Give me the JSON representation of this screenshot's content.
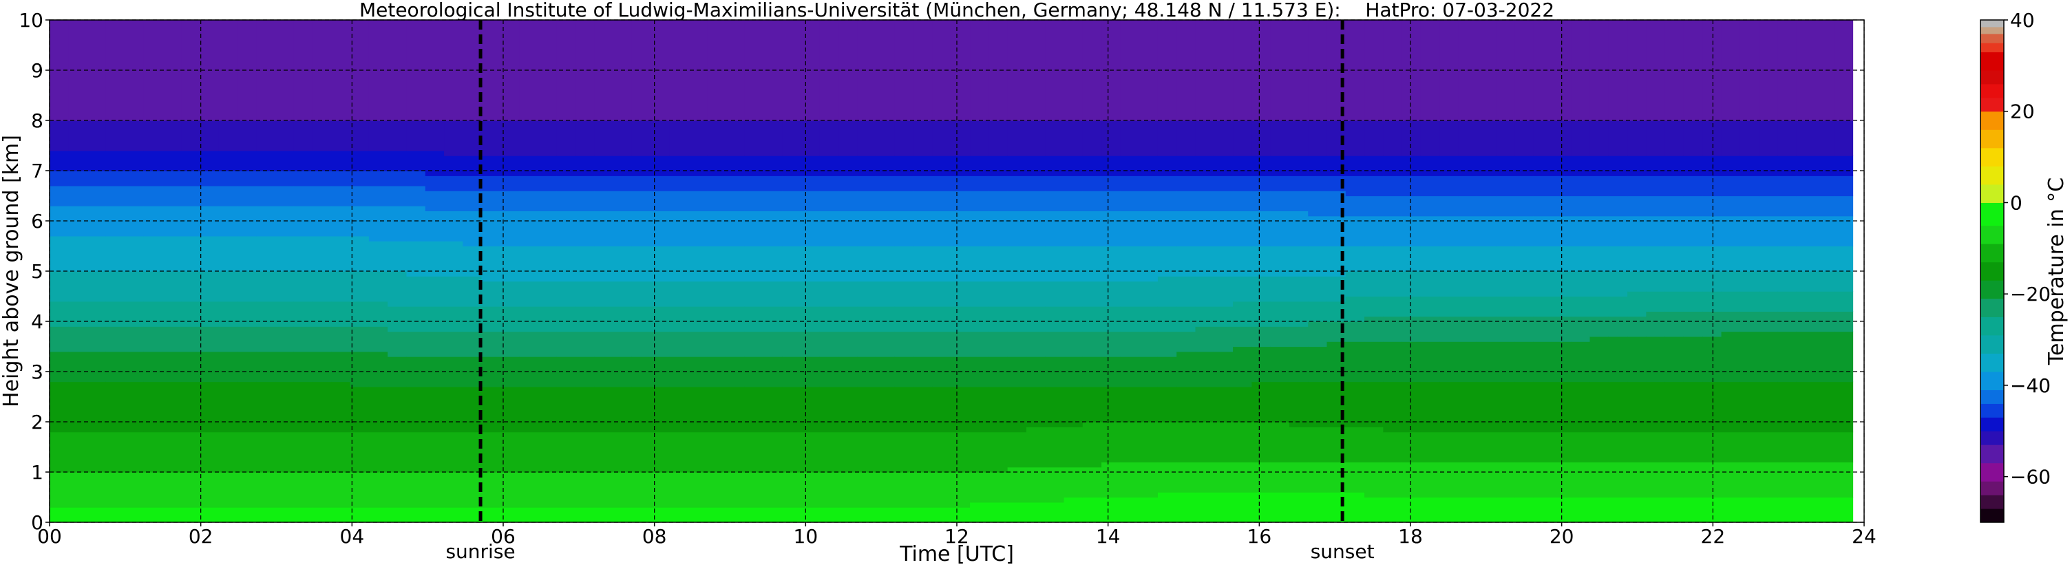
{
  "chart_data": {
    "type": "heatmap",
    "title": "Meteorological Institute of Ludwig-Maximilians-Universität (München, Germany; 48.148 N / 11.573 E):    HatPro: 07-03-2022",
    "xlabel": "Time [UTC]",
    "ylabel": "Height above ground [km]",
    "xlim": [
      0,
      24
    ],
    "ylim": [
      0,
      10
    ],
    "x_ticks": [
      "00",
      "02",
      "04",
      "06",
      "08",
      "10",
      "12",
      "14",
      "16",
      "18",
      "20",
      "22",
      "24"
    ],
    "y_ticks": [
      "0",
      "1",
      "2",
      "3",
      "4",
      "5",
      "6",
      "7",
      "8",
      "9",
      "10"
    ],
    "grid": true,
    "colorbar": {
      "label": "Temperature in $^\\circ$C",
      "range": [
        -70,
        40
      ],
      "ticks": [
        "40",
        "20",
        "0",
        "−20",
        "−40",
        "−60"
      ],
      "colors": [
        {
          "lo": -70,
          "hi": -67,
          "color": "#120010"
        },
        {
          "lo": -67,
          "hi": -64,
          "color": "#3d0a3d"
        },
        {
          "lo": -64,
          "hi": -61,
          "color": "#6a1270"
        },
        {
          "lo": -61,
          "hi": -57,
          "color": "#880d95"
        },
        {
          "lo": -57,
          "hi": -53,
          "color": "#5a19a8"
        },
        {
          "lo": -53,
          "hi": -50,
          "color": "#2a0fb6"
        },
        {
          "lo": -50,
          "hi": -47,
          "color": "#0a10cc"
        },
        {
          "lo": -47,
          "hi": -44,
          "color": "#0a40de"
        },
        {
          "lo": -44,
          "hi": -41,
          "color": "#0a70e2"
        },
        {
          "lo": -41,
          "hi": -37,
          "color": "#0a94de"
        },
        {
          "lo": -37,
          "hi": -33,
          "color": "#0aa8c8"
        },
        {
          "lo": -33,
          "hi": -29,
          "color": "#0aa8a8"
        },
        {
          "lo": -29,
          "hi": -25,
          "color": "#0aa890"
        },
        {
          "lo": -25,
          "hi": -21,
          "color": "#10a06a"
        },
        {
          "lo": -21,
          "hi": -17,
          "color": "#0a9a2c"
        },
        {
          "lo": -17,
          "hi": -13,
          "color": "#0a9a0a"
        },
        {
          "lo": -13,
          "hi": -9,
          "color": "#10b010"
        },
        {
          "lo": -9,
          "hi": -5,
          "color": "#18d418"
        },
        {
          "lo": -5,
          "hi": 0,
          "color": "#10f010"
        },
        {
          "lo": 0,
          "hi": 4,
          "color": "#c8f020"
        },
        {
          "lo": 4,
          "hi": 8,
          "color": "#e8e808"
        },
        {
          "lo": 8,
          "hi": 12,
          "color": "#f8d800"
        },
        {
          "lo": 12,
          "hi": 16,
          "color": "#f8b400"
        },
        {
          "lo": 16,
          "hi": 20,
          "color": "#f89400"
        },
        {
          "lo": 20,
          "hi": 23,
          "color": "#e81818"
        },
        {
          "lo": 23,
          "hi": 26,
          "color": "#e80e0e"
        },
        {
          "lo": 26,
          "hi": 29,
          "color": "#d40808"
        },
        {
          "lo": 29,
          "hi": 33,
          "color": "#d80000"
        },
        {
          "lo": 33,
          "hi": 35,
          "color": "#e83820"
        },
        {
          "lo": 35,
          "hi": 37,
          "color": "#d86040"
        },
        {
          "lo": 37,
          "hi": 38.5,
          "color": "#c8a080"
        },
        {
          "lo": 38.5,
          "hi": 40,
          "color": "#b8b8b8"
        }
      ]
    },
    "heights_km": [
      0,
      0.5,
      1,
      1.5,
      2,
      2.5,
      3,
      3.5,
      4,
      4.5,
      5,
      5.5,
      6,
      6.5,
      7,
      7.5,
      8,
      8.5,
      9,
      9.5,
      10
    ],
    "times_utc": [
      0,
      2,
      4,
      6,
      8,
      10,
      12,
      14,
      16,
      18,
      20,
      22,
      24
    ],
    "temperature_profiles": [
      {
        "time": 0,
        "values": [
          -3,
          -6,
          -9,
          -12,
          -14,
          -16,
          -18,
          -22,
          -26,
          -30,
          -33,
          -36,
          -39,
          -42,
          -47,
          -51,
          -53,
          -55,
          -56,
          -56,
          -56
        ]
      },
      {
        "time": 2,
        "values": [
          -3,
          -6,
          -9,
          -12,
          -14,
          -16,
          -18,
          -22,
          -26,
          -30,
          -33,
          -36,
          -39,
          -42,
          -47,
          -51,
          -53,
          -55,
          -56,
          -56,
          -56
        ]
      },
      {
        "time": 4,
        "values": [
          -3,
          -6,
          -9,
          -12,
          -14,
          -16,
          -18,
          -22,
          -26,
          -30,
          -33,
          -36,
          -39,
          -42,
          -47,
          -51,
          -53,
          -55,
          -56,
          -56,
          -56
        ]
      },
      {
        "time": 6,
        "values": [
          -3,
          -6,
          -9,
          -12,
          -14,
          -16,
          -19,
          -23,
          -27,
          -31,
          -34,
          -37,
          -40,
          -43,
          -48,
          -51,
          -53,
          -55,
          -56,
          -56,
          -56
        ]
      },
      {
        "time": 8,
        "values": [
          -3,
          -6,
          -9,
          -12,
          -14,
          -16,
          -19,
          -23,
          -27,
          -31,
          -34,
          -37,
          -40,
          -43,
          -48,
          -51,
          -53,
          -55,
          -56,
          -56,
          -56
        ]
      },
      {
        "time": 10,
        "values": [
          -3,
          -6,
          -9,
          -12,
          -14,
          -16,
          -19,
          -23,
          -27,
          -31,
          -34,
          -37,
          -40,
          -43,
          -48,
          -51,
          -53,
          -55,
          -56,
          -56,
          -56
        ]
      },
      {
        "time": 12,
        "values": [
          -3,
          -6,
          -9,
          -12,
          -14,
          -16,
          -19,
          -23,
          -27,
          -31,
          -34,
          -37,
          -40,
          -43,
          -48,
          -51,
          -53,
          -55,
          -56,
          -56,
          -56
        ]
      },
      {
        "time": 14,
        "values": [
          -2,
          -5,
          -8,
          -11,
          -13,
          -16,
          -19,
          -23,
          -27,
          -31,
          -34,
          -37,
          -40,
          -43,
          -48,
          -51,
          -53,
          -55,
          -56,
          -56,
          -56
        ]
      },
      {
        "time": 16,
        "values": [
          -1,
          -4,
          -8,
          -11,
          -13,
          -16,
          -18,
          -21,
          -26,
          -30,
          -34,
          -37,
          -40,
          -43,
          -48,
          -51,
          -53,
          -55,
          -56,
          -56,
          -56
        ]
      },
      {
        "time": 18,
        "values": [
          -2,
          -5,
          -8,
          -11,
          -14,
          -16,
          -18,
          -20,
          -24,
          -29,
          -33,
          -37,
          -40,
          -44,
          -48,
          -51,
          -53,
          -55,
          -56,
          -56,
          -56
        ]
      },
      {
        "time": 20,
        "values": [
          -2,
          -5,
          -8,
          -11,
          -14,
          -16,
          -18,
          -20,
          -24,
          -29,
          -33,
          -37,
          -40,
          -44,
          -48,
          -51,
          -53,
          -55,
          -56,
          -56,
          -56
        ]
      },
      {
        "time": 22,
        "values": [
          -2,
          -5,
          -8,
          -11,
          -14,
          -16,
          -18,
          -19,
          -23,
          -28,
          -33,
          -37,
          -40,
          -44,
          -48,
          -51,
          -53,
          -55,
          -56,
          -56,
          -56
        ]
      },
      {
        "time": 24,
        "values": [
          -2,
          -5,
          -8,
          -11,
          -14,
          -16,
          -18,
          -19,
          -23,
          -28,
          -33,
          -37,
          -40,
          -44,
          -48,
          -51,
          -53,
          -55,
          -56,
          -56,
          -56
        ]
      }
    ],
    "data_end_time": 23.85,
    "vertical_markers": [
      {
        "label": "sunrise",
        "time": 5.7
      },
      {
        "label": "sunset",
        "time": 17.1
      }
    ]
  }
}
